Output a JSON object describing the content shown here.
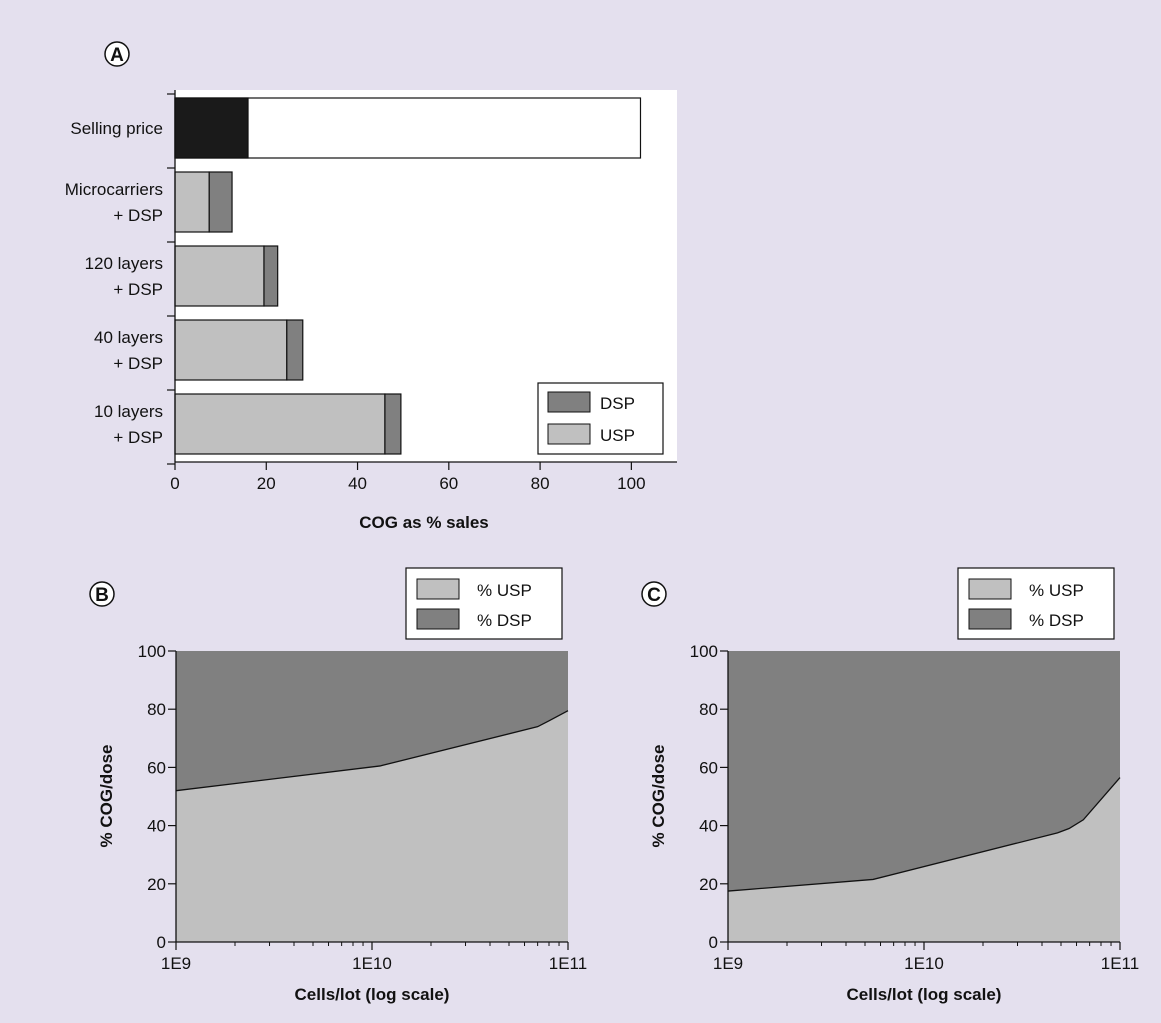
{
  "figure": {
    "background": "#e4e0ee"
  },
  "chart_data": [
    {
      "panel": "A",
      "type": "bar",
      "orientation": "horizontal",
      "stacked": true,
      "categories": [
        [
          "Selling price"
        ],
        [
          "Microcarriers",
          "+ DSP"
        ],
        [
          "120 layers",
          "+ DSP"
        ],
        [
          "40 layers",
          "+ DSP"
        ],
        [
          "10 layers",
          "+ DSP"
        ]
      ],
      "series": [
        {
          "name": "USP",
          "color": "#c0c0c0",
          "values": [
            null,
            7.5,
            19.5,
            24.5,
            46
          ]
        },
        {
          "name": "DSP",
          "color": "#808080",
          "values": [
            null,
            5,
            3,
            3.5,
            3.5
          ]
        }
      ],
      "selling_price": {
        "value": 102,
        "cog_portion": 16,
        "cog_color": "#1a1a1a",
        "rest_color": "#ffffff"
      },
      "xlabel": "COG as % sales",
      "ylabel": "",
      "xlim": [
        0,
        110
      ],
      "xticks": [
        0,
        20,
        40,
        60,
        80,
        100
      ],
      "legend": {
        "position": "bottom-right",
        "entries": [
          "DSP",
          "USP"
        ]
      },
      "grid": false
    },
    {
      "panel": "B",
      "type": "area",
      "stacked": true,
      "x_scale": "log",
      "x": [
        1000000000.0,
        11000000000.0,
        70000000000.0,
        80000000000.0,
        100000000000.0
      ],
      "series": [
        {
          "name": "% USP",
          "color": "#c0c0c0",
          "values": [
            52,
            60.5,
            74,
            76,
            79.5
          ]
        },
        {
          "name": "% DSP",
          "color": "#808080",
          "values": [
            48,
            39.5,
            26,
            24,
            20.5
          ]
        }
      ],
      "xlabel": "Cells/lot (log scale)",
      "ylabel": "% COG/dose",
      "xticks": [
        "1E9",
        "1E10",
        "1E11"
      ],
      "ylim": [
        0,
        100
      ],
      "yticks": [
        0,
        20,
        40,
        60,
        80,
        100
      ],
      "legend": {
        "position": "top-right",
        "entries": [
          "% USP",
          "% DSP"
        ]
      },
      "grid": false
    },
    {
      "panel": "C",
      "type": "area",
      "stacked": true,
      "x_scale": "log",
      "x": [
        1000000000.0,
        5500000000.0,
        48000000000.0,
        55000000000.0,
        65000000000.0,
        100000000000.0
      ],
      "series": [
        {
          "name": "% USP",
          "color": "#c0c0c0",
          "values": [
            17.5,
            21.5,
            37.5,
            39,
            42,
            56.5
          ]
        },
        {
          "name": "% DSP",
          "color": "#808080",
          "values": [
            82.5,
            78.5,
            62.5,
            61,
            58,
            43.5
          ]
        }
      ],
      "xlabel": "Cells/lot (log scale)",
      "ylabel": "% COG/dose",
      "xticks": [
        "1E9",
        "1E10",
        "1E11"
      ],
      "ylim": [
        0,
        100
      ],
      "yticks": [
        0,
        20,
        40,
        60,
        80,
        100
      ],
      "legend": {
        "position": "top-right",
        "entries": [
          "% USP",
          "% DSP"
        ]
      },
      "grid": false
    }
  ]
}
